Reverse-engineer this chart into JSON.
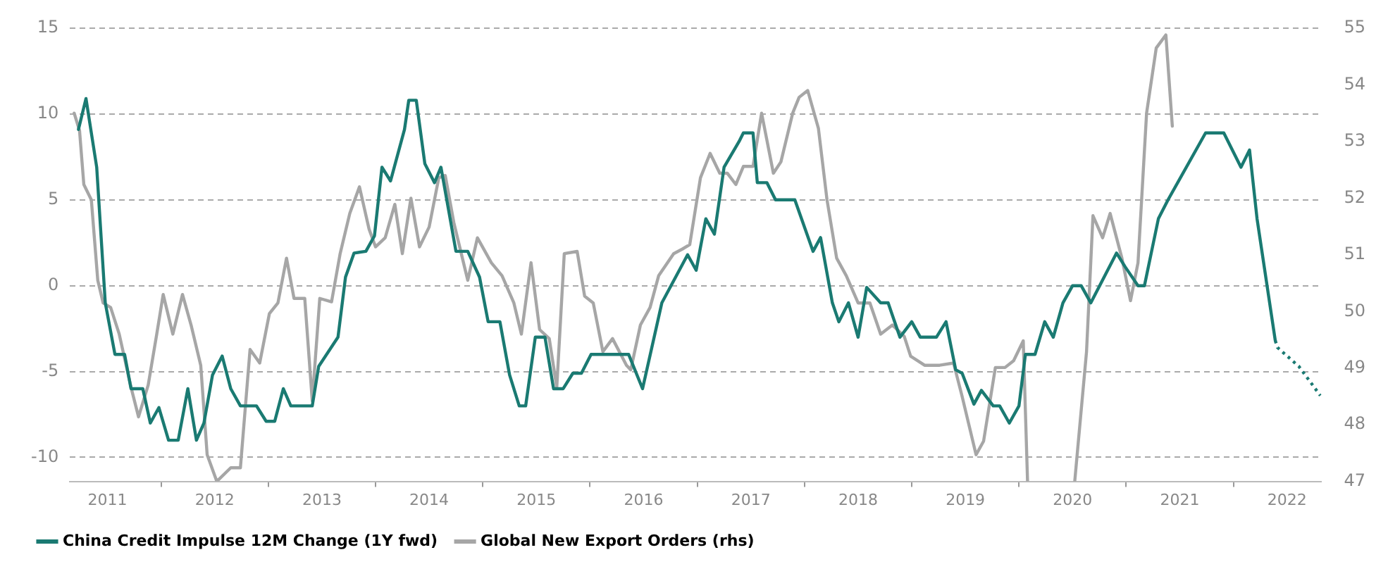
{
  "chart_data": {
    "type": "line",
    "xlim": [
      2011.15,
      2022.82
    ],
    "xticks": [
      {
        "value": 2011.5,
        "label": "2011"
      },
      {
        "value": 2012,
        "label": null
      },
      {
        "value": 2012.5,
        "label": "2012"
      },
      {
        "value": 2013,
        "label": null
      },
      {
        "value": 2013.5,
        "label": "2013"
      },
      {
        "value": 2014,
        "label": null
      },
      {
        "value": 2014.5,
        "label": "2014"
      },
      {
        "value": 2015,
        "label": null
      },
      {
        "value": 2015.5,
        "label": "2015"
      },
      {
        "value": 2016,
        "label": null
      },
      {
        "value": 2016.5,
        "label": "2016"
      },
      {
        "value": 2017,
        "label": null
      },
      {
        "value": 2017.5,
        "label": "2017"
      },
      {
        "value": 2018,
        "label": null
      },
      {
        "value": 2018.5,
        "label": "2018"
      },
      {
        "value": 2019,
        "label": null
      },
      {
        "value": 2019.5,
        "label": "2019"
      },
      {
        "value": 2020,
        "label": null
      },
      {
        "value": 2020.5,
        "label": "2020"
      },
      {
        "value": 2021,
        "label": null
      },
      {
        "value": 2021.5,
        "label": "2021"
      },
      {
        "value": 2022,
        "label": null
      },
      {
        "value": 2022.5,
        "label": "2022"
      }
    ],
    "ylim": [
      -11.4,
      15
    ],
    "yticks": [
      -10,
      -5,
      0,
      5,
      10,
      15
    ],
    "y2lim": [
      47,
      55
    ],
    "y2ticks": [
      47,
      48,
      49,
      50,
      51,
      52,
      53,
      54,
      55
    ],
    "grid": "y",
    "legend": "bottom",
    "marker": "none",
    "series": [
      {
        "name": "China Credit Impulse 12M Change (1Y fwd)",
        "color": "#1a7a72",
        "line_style": "solid",
        "x": [
          2011.23,
          2011.3,
          2011.4,
          2011.48,
          2011.57,
          2011.66,
          2011.72,
          2011.83,
          2011.9,
          2011.98,
          2012.07,
          2012.16,
          2012.25,
          2012.33,
          2012.4,
          2012.48,
          2012.57,
          2012.65,
          2012.74,
          2012.89,
          2012.98,
          2013.06,
          2013.14,
          2013.21,
          2013.41,
          2013.47,
          2013.65,
          2013.72,
          2013.8,
          2013.91,
          2013.99,
          2014.06,
          2014.14,
          2014.27,
          2014.31,
          2014.38,
          2014.46,
          2014.55,
          2014.61,
          2014.75,
          2014.86,
          2014.97,
          2015.05,
          2015.16,
          2015.25,
          2015.34,
          2015.4,
          2015.49,
          2015.58,
          2015.66,
          2015.75,
          2015.84,
          2015.92,
          2016.01,
          2016.36,
          2016.49,
          2016.67,
          2016.91,
          2016.99,
          2017.08,
          2017.16,
          2017.25,
          2017.39,
          2017.43,
          2017.52,
          2017.56,
          2017.65,
          2017.73,
          2017.91,
          2018.08,
          2018.15,
          2018.26,
          2018.32,
          2018.41,
          2018.5,
          2018.58,
          2018.71,
          2018.78,
          2018.89,
          2019,
          2019.08,
          2019.23,
          2019.32,
          2019.41,
          2019.47,
          2019.58,
          2019.65,
          2019.76,
          2019.82,
          2019.91,
          2020,
          2020.06,
          2020.15,
          2020.24,
          2020.32,
          2020.41,
          2020.5,
          2020.58,
          2020.67,
          2020.91,
          2020.99,
          2021.11,
          2021.17,
          2021.3,
          2021.39,
          2021.74,
          2021.91,
          2022.07,
          2022.15,
          2022.22,
          2022.39
        ],
        "values": [
          9.1,
          10.9,
          6.9,
          -1,
          -4,
          -4,
          -6,
          -6,
          -8,
          -7.1,
          -9,
          -9,
          -6,
          -9,
          -8,
          -5.2,
          -4.1,
          -6,
          -7,
          -7,
          -7.9,
          -7.9,
          -6,
          -7,
          -7,
          -4.7,
          -3,
          0.5,
          1.9,
          2,
          2.9,
          6.9,
          6.1,
          9.1,
          10.8,
          10.8,
          7.1,
          6,
          6.9,
          2,
          2,
          0.5,
          -2.1,
          -2.1,
          -5.2,
          -7,
          -7,
          -3,
          -3,
          -6,
          -6,
          -5.1,
          -5.1,
          -4,
          -4,
          -6,
          -1,
          1.8,
          0.9,
          3.9,
          3,
          6.9,
          8.4,
          8.9,
          8.9,
          6,
          6,
          5,
          5,
          2,
          2.8,
          -1,
          -2.1,
          -1,
          -3,
          -0.1,
          -1,
          -1,
          -3,
          -2.1,
          -3,
          -3,
          -2.1,
          -4.9,
          -5.1,
          -6.9,
          -6.1,
          -7,
          -7,
          -8,
          -7,
          -4,
          -4,
          -2.1,
          -3,
          -1,
          0,
          0,
          -1,
          1.9,
          1.1,
          0,
          0,
          3.9,
          5,
          8.9,
          8.9,
          6.9,
          7.9,
          3.9,
          -3.2
        ]
      },
      {
        "color": "#1a7a72",
        "line_style": "dotted",
        "x": [
          2022.39,
          2022.41,
          2022.61,
          2022.81
        ],
        "values": [
          -3.2,
          -3.6,
          -4.7,
          -6.4
        ]
      },
      {
        "name": "Global New Export Orders (rhs)",
        "color": "#a6a6a6",
        "line_style": "solid",
        "axis": "y2",
        "x": [
          2011.19,
          2011.24,
          2011.28,
          2011.35,
          2011.41,
          2011.46,
          2011.53,
          2011.61,
          2011.72,
          2011.79,
          2011.88,
          2011.96,
          2012.02,
          2012.11,
          2012.2,
          2012.28,
          2012.37,
          2012.43,
          2012.52,
          2012.65,
          2012.74,
          2012.83,
          2012.92,
          2013.01,
          2013.09,
          2013.17,
          2013.24,
          2013.34,
          2013.41,
          2013.48,
          2013.59,
          2013.67,
          2013.76,
          2013.85,
          2013.94,
          2014,
          2014.09,
          2014.18,
          2014.25,
          2014.33,
          2014.41,
          2014.5,
          2014.59,
          2014.65,
          2014.73,
          2014.81,
          2014.86,
          2014.95,
          2015.08,
          2015.18,
          2015.29,
          2015.36,
          2015.45,
          2015.53,
          2015.62,
          2015.69,
          2015.76,
          2015.88,
          2015.95,
          2016.03,
          2016.12,
          2016.21,
          2016.34,
          2016.38,
          2016.47,
          2016.56,
          2016.64,
          2016.78,
          2016.86,
          2016.93,
          2017.03,
          2017.12,
          2017.21,
          2017.28,
          2017.36,
          2017.43,
          2017.52,
          2017.6,
          2017.71,
          2017.78,
          2017.89,
          2017.95,
          2018.03,
          2018.13,
          2018.21,
          2018.3,
          2018.39,
          2018.5,
          2018.61,
          2018.71,
          2018.82,
          2018.93,
          2018.99,
          2019.12,
          2019.26,
          2019.39,
          2019.47,
          2019.6,
          2019.67,
          2019.78,
          2019.87,
          2019.95,
          2020.04,
          2020.08,
          2020.3,
          2020.52,
          2020.63,
          2020.69,
          2020.78,
          2020.85,
          2020.96,
          2021.04,
          2021.11,
          2021.19,
          2021.28,
          2021.37,
          2021.43
        ],
        "values": [
          53.5,
          53.19,
          52.24,
          51.97,
          50.55,
          50.15,
          50.07,
          49.6,
          48.66,
          48.14,
          48.7,
          49.6,
          50.3,
          49.6,
          50.3,
          49.76,
          49.05,
          47.47,
          47,
          47.24,
          47.24,
          49.33,
          49.09,
          49.96,
          50.15,
          50.94,
          50.23,
          50.23,
          48.42,
          50.23,
          50.17,
          51.02,
          51.73,
          52.2,
          51.45,
          51.14,
          51.3,
          51.89,
          51.02,
          52,
          51.14,
          51.49,
          52.36,
          52.4,
          51.57,
          50.94,
          50.55,
          51.3,
          50.86,
          50.63,
          50.15,
          49.6,
          50.86,
          49.68,
          49.52,
          48.66,
          51.02,
          51.06,
          50.27,
          50.15,
          49.29,
          49.52,
          49.05,
          48.97,
          49.76,
          50.07,
          50.63,
          51.02,
          51.1,
          51.18,
          52.36,
          52.79,
          52.44,
          52.44,
          52.24,
          52.56,
          52.56,
          53.5,
          52.44,
          52.64,
          53.5,
          53.78,
          53.9,
          53.23,
          51.97,
          50.94,
          50.63,
          50.15,
          50.15,
          49.6,
          49.76,
          49.56,
          49.21,
          49.05,
          49.05,
          49.09,
          48.5,
          47.47,
          47.71,
          49.01,
          49.01,
          49.13,
          49.48,
          47,
          null,
          47,
          49.29,
          51.69,
          51.3,
          51.73,
          50.94,
          50.19,
          50.86,
          53.5,
          54.65,
          54.88,
          53.27
        ]
      }
    ]
  }
}
